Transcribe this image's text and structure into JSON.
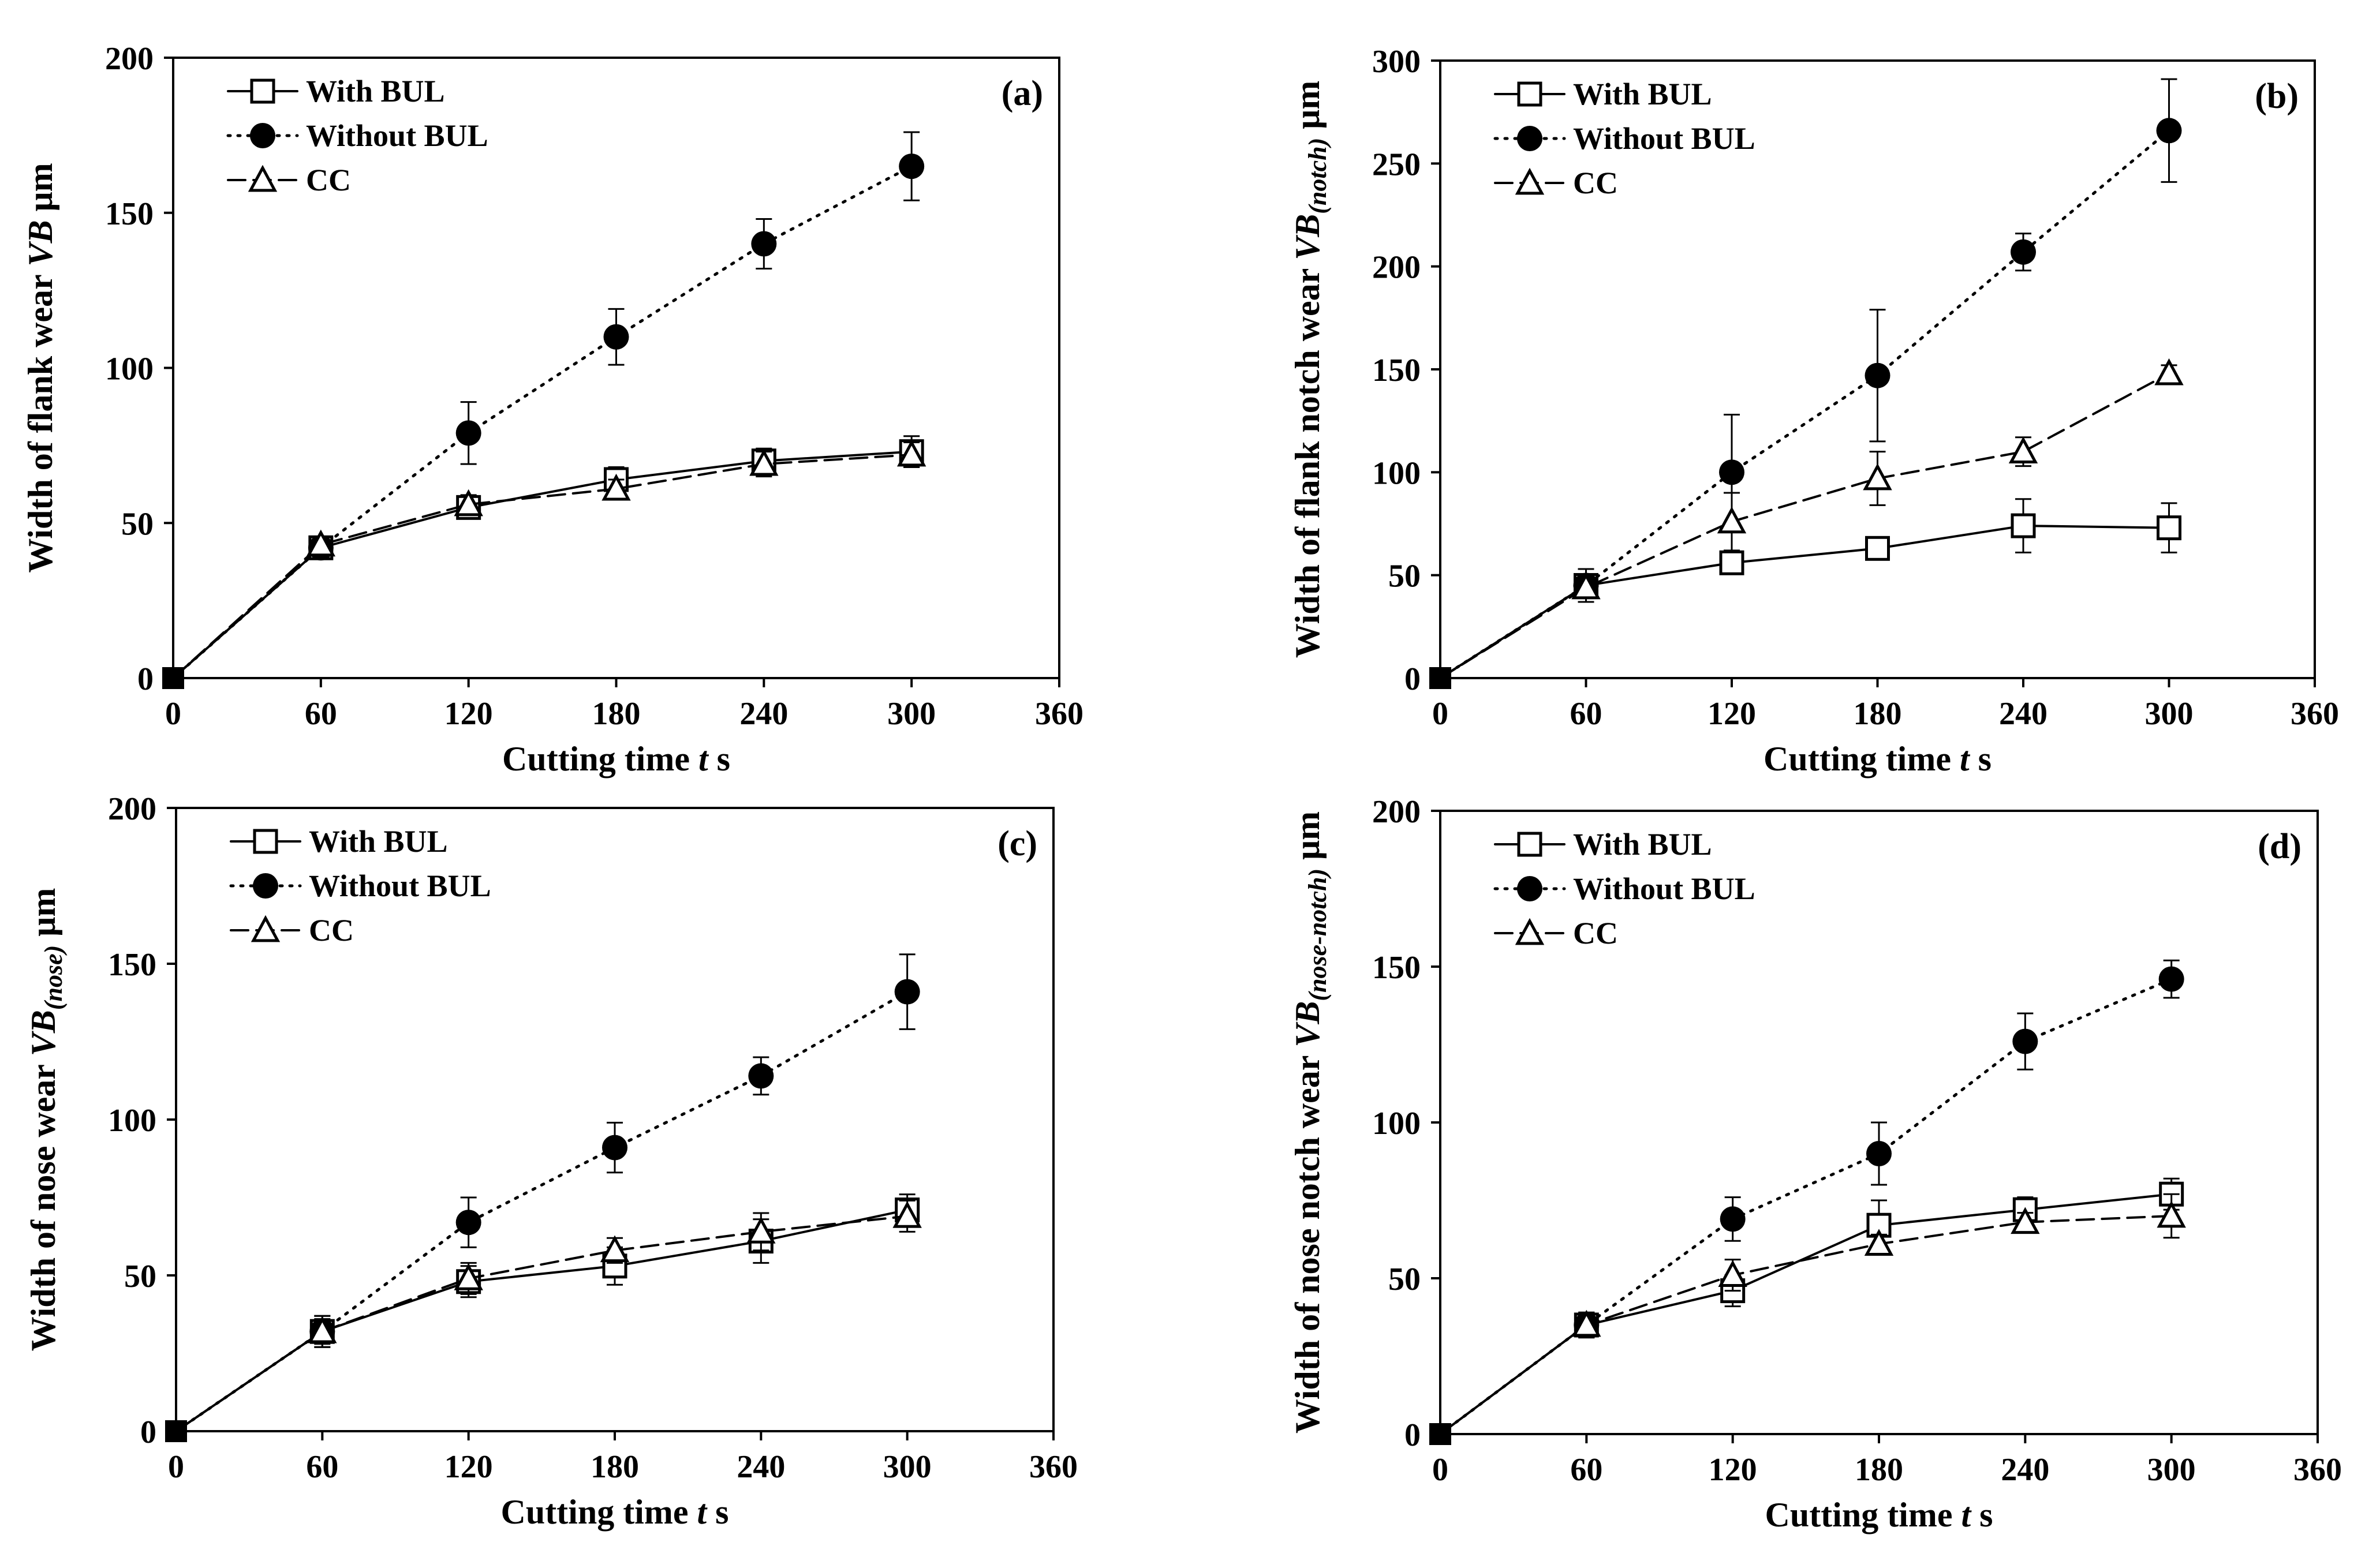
{
  "colors": {
    "ink": "#000000",
    "background": "#ffffff",
    "marker_open": "#ffffff"
  },
  "series_styles": [
    {
      "name": "With BUL",
      "marker": "open-square",
      "line": "solid"
    },
    {
      "name": "Without BUL",
      "marker": "filled-circle",
      "line": "dotted"
    },
    {
      "name": "CC",
      "marker": "open-triangle",
      "line": "dashed"
    }
  ],
  "chart_data": [
    {
      "type": "line",
      "panel_label": "(a)",
      "xlabel": "Cutting time t s",
      "ylabel": "Width of flank wear VB μm",
      "xlim": [
        0,
        360
      ],
      "ylim": [
        0,
        200
      ],
      "xticks": [
        0,
        60,
        120,
        180,
        240,
        300,
        360
      ],
      "yticks": [
        0,
        50,
        100,
        150,
        200
      ],
      "legend_position": "top-left",
      "x": [
        0,
        60,
        120,
        180,
        240,
        300
      ],
      "series": [
        {
          "name": "With BUL",
          "values": [
            0,
            42,
            55,
            64,
            70,
            73
          ],
          "errors": [
            0,
            2,
            3,
            4,
            4,
            5
          ]
        },
        {
          "name": "Without BUL",
          "values": [
            0,
            42,
            79,
            110,
            140,
            165
          ],
          "errors": [
            0,
            2,
            10,
            9,
            8,
            11
          ]
        },
        {
          "name": "CC",
          "values": [
            0,
            43,
            56,
            61,
            69,
            72
          ],
          "errors": [
            0,
            2,
            3,
            3,
            4,
            4
          ]
        }
      ]
    },
    {
      "type": "line",
      "panel_label": "(b)",
      "xlabel": "Cutting time t s",
      "ylabel": "Width of flank notch wear VB(notch) μm",
      "xlim": [
        0,
        360
      ],
      "ylim": [
        0,
        300
      ],
      "xticks": [
        0,
        60,
        120,
        180,
        240,
        300,
        360
      ],
      "yticks": [
        0,
        50,
        100,
        150,
        200,
        250,
        300
      ],
      "legend_position": "top-left",
      "x": [
        0,
        60,
        120,
        180,
        240,
        300
      ],
      "series": [
        {
          "name": "With BUL",
          "values": [
            0,
            45,
            56,
            63,
            74,
            73
          ],
          "errors": [
            0,
            5,
            5,
            4,
            13,
            12
          ]
        },
        {
          "name": "Without BUL",
          "values": [
            0,
            45,
            100,
            147,
            207,
            266
          ],
          "errors": [
            0,
            8,
            28,
            32,
            9,
            25
          ]
        },
        {
          "name": "CC",
          "values": [
            0,
            44,
            76,
            97,
            110,
            148
          ],
          "errors": [
            0,
            5,
            14,
            13,
            7,
            4
          ]
        }
      ]
    },
    {
      "type": "line",
      "panel_label": "(c)",
      "xlabel": "Cutting time t s",
      "ylabel": "Width of nose wear VB(nose) μm",
      "xlim": [
        0,
        360
      ],
      "ylim": [
        0,
        200
      ],
      "xticks": [
        0,
        60,
        120,
        180,
        240,
        300,
        360
      ],
      "yticks": [
        0,
        50,
        100,
        150,
        200
      ],
      "legend_position": "top-left",
      "x": [
        0,
        60,
        120,
        180,
        240,
        300
      ],
      "series": [
        {
          "name": "With BUL",
          "values": [
            0,
            32,
            48,
            53,
            61,
            71
          ],
          "errors": [
            0,
            5,
            5,
            6,
            7,
            5
          ]
        },
        {
          "name": "Without BUL",
          "values": [
            0,
            32,
            67,
            91,
            114,
            141
          ],
          "errors": [
            0,
            5,
            8,
            8,
            6,
            12
          ]
        },
        {
          "name": "CC",
          "values": [
            0,
            32,
            49,
            58,
            64,
            69
          ],
          "errors": [
            0,
            4,
            5,
            4,
            6,
            5
          ]
        }
      ]
    },
    {
      "type": "line",
      "panel_label": "(d)",
      "xlabel": "Cutting time t s",
      "ylabel": "Width of nose notch wear VB(nose-notch) μm",
      "xlim": [
        0,
        360
      ],
      "ylim": [
        0,
        200
      ],
      "xticks": [
        0,
        60,
        120,
        180,
        240,
        300,
        360
      ],
      "yticks": [
        0,
        50,
        100,
        150,
        200
      ],
      "legend_position": "top-left",
      "x": [
        0,
        60,
        120,
        180,
        240,
        300
      ],
      "series": [
        {
          "name": "With BUL",
          "values": [
            0,
            35,
            46,
            67,
            72,
            77
          ],
          "errors": [
            0,
            4,
            5,
            8,
            4,
            5
          ]
        },
        {
          "name": "Without BUL",
          "values": [
            0,
            35,
            69,
            90,
            126,
            146
          ],
          "errors": [
            0,
            4,
            7,
            10,
            9,
            6
          ]
        },
        {
          "name": "CC",
          "values": [
            0,
            35,
            51,
            61,
            68,
            70
          ],
          "errors": [
            0,
            4,
            5,
            3,
            3,
            7
          ]
        }
      ]
    }
  ]
}
